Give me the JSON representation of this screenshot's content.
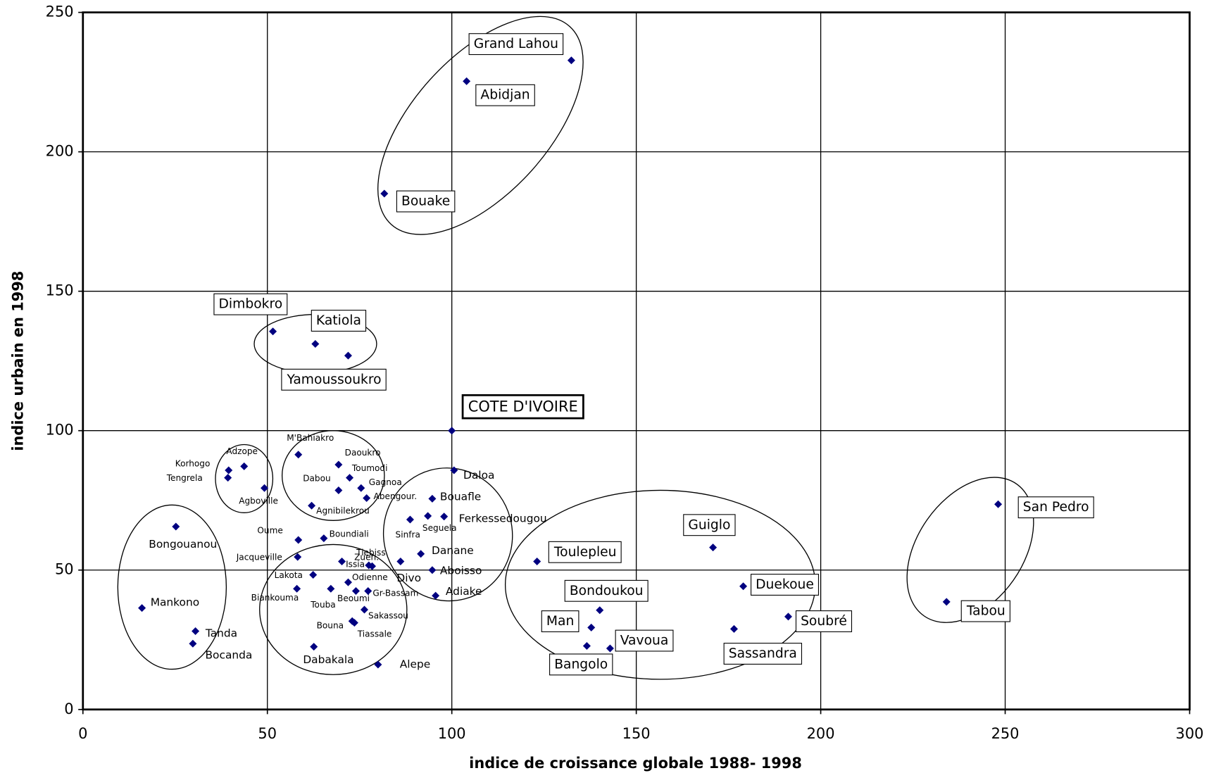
{
  "chart_data": {
    "type": "scatter",
    "xlabel": "indice de croissance globale 1988- 1998",
    "ylabel": "indice urbain en 1998",
    "xlim": [
      0,
      300
    ],
    "xticks": [
      0,
      50,
      100,
      150,
      200,
      250,
      300
    ],
    "ylim": [
      0,
      250
    ],
    "yticks": [
      0,
      50,
      100,
      150,
      200,
      250
    ],
    "grid": true,
    "color": "#000080",
    "point_labels": [
      "Grand Lahou",
      "Abidjan",
      "Bouake",
      "Dimbokro",
      "Katiola",
      "Yamoussoukro",
      "COTE D'IVOIRE",
      "Daloa",
      "Bouafle",
      "Ferkessedougou",
      "Seguela",
      "Sinfra",
      "Danane",
      "Divo",
      "Aboisso",
      "Adiake",
      "Alepe",
      "Toulepleu",
      "Guiglo",
      "Duekoue",
      "Soubré",
      "Sassandra",
      "Bondoukou",
      "Man",
      "Vavoua",
      "Bangolo",
      "San Pedro",
      "Tabou",
      "Korhogo",
      "Tengrela",
      "Adzope",
      "Agboville",
      "M'Bahiakro",
      "Daoukro",
      "Toumodi",
      "Dabou",
      "Gagnoa",
      "Abengour.",
      "Agnibilekrou",
      "Oume",
      "Boundiali",
      "Jacqueville",
      "Zuen.",
      "Tiebiss.",
      "Issia",
      "Lakota",
      "Odienne",
      "Biankouma",
      "Touba",
      "Beoumi",
      "Gr-Bassam",
      "Sakassou",
      "Bouna",
      "Tiassale",
      "Dabakala",
      "Bongouanou",
      "Mankono",
      "Tanda",
      "Bocanda"
    ],
    "x": [
      132.4,
      104.0,
      81.7,
      51.5,
      63.0,
      71.9,
      100,
      100.6,
      94.7,
      97.9,
      93.5,
      88.7,
      91.6,
      86.1,
      94.7,
      95.6,
      80.0,
      123.1,
      170.8,
      179.0,
      191.2,
      176.5,
      140.1,
      137.8,
      142.9,
      136.6,
      248.1,
      234.1,
      39.5,
      39.3,
      43.7,
      49.2,
      58.4,
      69.3,
      72.3,
      69.3,
      75.4,
      76.9,
      62.0,
      58.4,
      65.3,
      58.2,
      70.2,
      77.5,
      78.4,
      62.4,
      71.9,
      58.0,
      67.2,
      74.0,
      77.3,
      76.3,
      73.0,
      73.6,
      62.6,
      25.2,
      16.0,
      30.5,
      29.8
    ],
    "values": [
      232.8,
      225.3,
      185.0,
      135.6,
      131.1,
      126.9,
      100,
      85.8,
      75.6,
      69.2,
      69.4,
      68.1,
      55.8,
      53.1,
      50.0,
      40.8,
      16.1,
      53.1,
      58.1,
      44.2,
      33.3,
      28.9,
      35.6,
      29.4,
      21.9,
      22.8,
      73.6,
      38.6,
      85.8,
      83.1,
      87.2,
      79.4,
      91.4,
      87.8,
      83.1,
      78.6,
      79.4,
      75.8,
      73.1,
      60.8,
      61.4,
      54.7,
      53.1,
      51.7,
      51.4,
      48.3,
      45.6,
      43.3,
      43.3,
      42.5,
      42.5,
      35.8,
      31.7,
      31.1,
      22.5,
      65.6,
      36.4,
      28.1,
      23.6
    ]
  }
}
